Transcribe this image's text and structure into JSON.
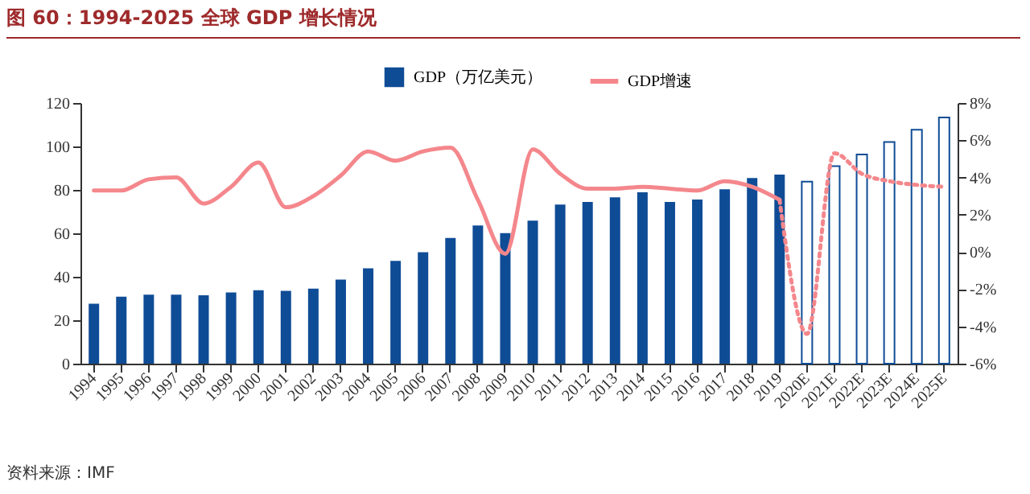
{
  "chart_data": {
    "type": "bar",
    "title": "图 60：1994-2025 全球 GDP 增长情况",
    "categories": [
      "1994",
      "1995",
      "1996",
      "1997",
      "1998",
      "1999",
      "2000",
      "2001",
      "2002",
      "2003",
      "2004",
      "2005",
      "2006",
      "2007",
      "2008",
      "2009",
      "2010",
      "2011",
      "2012",
      "2013",
      "2014",
      "2015",
      "2016",
      "2017",
      "2018",
      "2019",
      "2020E",
      "2021E",
      "2022E",
      "2023E",
      "2024E",
      "2025E"
    ],
    "series": [
      {
        "name": "GDP（万亿美元）",
        "color": "#0f4c96",
        "values": [
          27.6,
          30.8,
          31.8,
          31.8,
          31.5,
          32.8,
          33.8,
          33.5,
          34.5,
          38.7,
          43.9,
          47.3,
          51.3,
          57.9,
          63.6,
          60.1,
          65.8,
          73.2,
          74.4,
          76.6,
          78.9,
          74.4,
          75.6,
          80.3,
          85.5,
          87.0,
          null,
          null,
          null,
          null,
          null,
          null
        ]
      },
      {
        "color": "#ffffff",
        "values": [
          null,
          null,
          null,
          null,
          null,
          null,
          null,
          null,
          null,
          null,
          null,
          null,
          null,
          null,
          null,
          null,
          null,
          null,
          null,
          null,
          null,
          null,
          null,
          null,
          null,
          null,
          83.8,
          90.9,
          96.3,
          102,
          107.7,
          113.3
        ]
      },
      {
        "name": "GDP增速",
        "type": "line",
        "axis": "y2",
        "color": "#f4878c",
        "line_style": "solid",
        "values": [
          3.3,
          3.3,
          3.9,
          4.0,
          2.6,
          3.5,
          4.8,
          2.4,
          3.0,
          4.1,
          5.4,
          4.9,
          5.4,
          5.6,
          2.8,
          -0.1,
          5.5,
          4.2,
          3.4,
          3.4,
          3.5,
          3.4,
          3.3,
          3.8,
          3.5,
          2.8,
          null,
          null,
          null,
          null,
          null,
          null
        ]
      },
      {
        "type": "line",
        "axis": "y2",
        "color": "#f4878c",
        "line_style": "dotted",
        "values": [
          null,
          null,
          null,
          null,
          null,
          null,
          null,
          null,
          null,
          null,
          null,
          null,
          null,
          null,
          null,
          null,
          null,
          null,
          null,
          null,
          null,
          null,
          null,
          null,
          null,
          2.8,
          -4.4,
          5.3,
          4.2,
          3.8,
          3.6,
          3.5
        ]
      }
    ],
    "ylim": [
      0,
      120
    ],
    "yticks": [
      0,
      20,
      40,
      60,
      80,
      100,
      120
    ],
    "y2lim": [
      -6,
      8
    ],
    "y2ticks": [
      {
        "value": -6,
        "label": "-6%"
      },
      {
        "value": -4,
        "label": "-4%"
      },
      {
        "value": -2,
        "label": "-2%"
      },
      {
        "value": 0,
        "label": "0%"
      },
      {
        "value": 2,
        "label": "2%"
      },
      {
        "value": 4,
        "label": "4%"
      },
      {
        "value": 6,
        "label": "6%"
      },
      {
        "value": 8,
        "label": "8%"
      }
    ],
    "legend": "top",
    "grid": false,
    "annotations": [
      "资料来源：IMF"
    ]
  }
}
